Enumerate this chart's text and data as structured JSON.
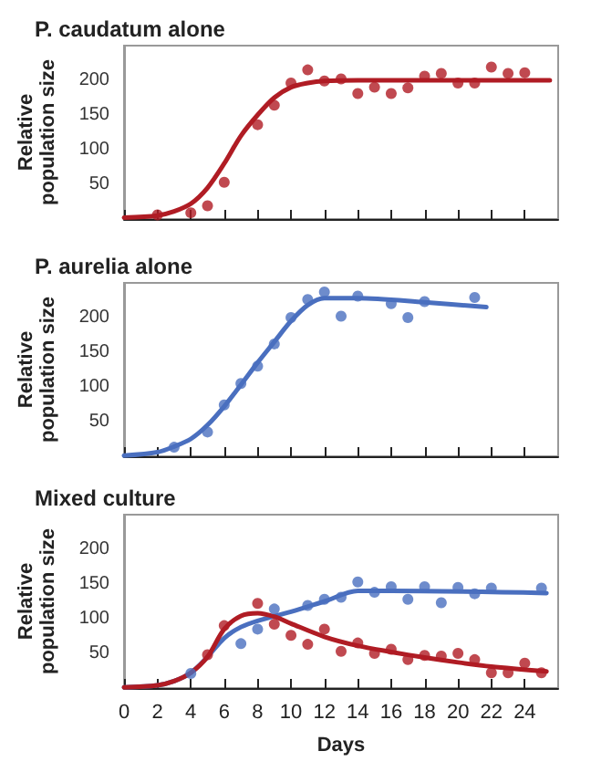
{
  "chart_data": [
    {
      "type": "scatter",
      "title": "P. caudatum alone",
      "ylabel": "Relative population size",
      "xlim": [
        0,
        26
      ],
      "xticks": [
        0,
        2,
        4,
        6,
        8,
        10,
        12,
        14,
        16,
        18,
        20,
        22,
        24
      ],
      "ylim": [
        0,
        250
      ],
      "yticks": [
        50,
        100,
        150,
        200
      ],
      "tick_labels": "y",
      "grid": false,
      "marker": "circle",
      "series": [
        {
          "color": "#b01c24",
          "x": [
            2,
            4,
            5,
            6,
            8,
            9,
            10,
            11,
            12,
            13,
            14,
            15,
            16,
            17,
            18,
            19,
            20,
            21,
            22,
            23,
            24
          ],
          "values": [
            6,
            9,
            19,
            53,
            136,
            164,
            196,
            215,
            199,
            202,
            181,
            190,
            181,
            189,
            206,
            210,
            196,
            196,
            219,
            210,
            211
          ]
        },
        {
          "type": "line",
          "marker": "none",
          "line_style": "solid",
          "color": "#b01c24",
          "x": [
            0,
            2,
            3,
            4,
            5,
            6,
            7,
            8,
            9,
            10,
            11,
            12,
            14,
            25.5
          ],
          "values": [
            2,
            5,
            11,
            22,
            45,
            80,
            120,
            150,
            175,
            190,
            196,
            199,
            200,
            200
          ]
        }
      ]
    },
    {
      "type": "scatter",
      "title": "P. aurelia alone",
      "ylabel": "Relative population size",
      "xlim": [
        0,
        26
      ],
      "xticks": [
        0,
        2,
        4,
        6,
        8,
        10,
        12,
        14,
        16,
        18,
        20,
        22,
        24
      ],
      "ylim": [
        0,
        250
      ],
      "yticks": [
        50,
        100,
        150,
        200
      ],
      "tick_labels": "y",
      "grid": false,
      "marker": "circle",
      "series": [
        {
          "color": "#4a6fbf",
          "x": [
            3,
            5,
            6,
            7,
            8,
            9,
            10,
            11,
            12,
            13,
            14,
            16,
            17,
            18,
            21
          ],
          "values": [
            13,
            35,
            74,
            105,
            130,
            162,
            200,
            226,
            237,
            202,
            231,
            220,
            200,
            223,
            229
          ]
        },
        {
          "type": "line",
          "marker": "none",
          "line_style": "solid",
          "color": "#4a6fbf",
          "x": [
            0,
            2,
            3,
            4,
            5,
            6,
            7,
            8,
            9,
            10,
            11,
            12,
            14,
            18,
            21.7
          ],
          "values": [
            1,
            6,
            14,
            25,
            45,
            72,
            103,
            135,
            165,
            195,
            218,
            228,
            228,
            222,
            215
          ]
        }
      ]
    },
    {
      "type": "scatter",
      "title": "Mixed culture",
      "xlabel": "Days",
      "ylabel": "Relative population size",
      "xlim": [
        0,
        26
      ],
      "xticks": [
        0,
        2,
        4,
        6,
        8,
        10,
        12,
        14,
        16,
        18,
        20,
        22,
        24
      ],
      "ylim": [
        0,
        250
      ],
      "yticks": [
        50,
        100,
        150,
        200
      ],
      "grid": false,
      "marker": "circle",
      "series": [
        {
          "type": "line",
          "marker": "none",
          "line_style": "solid",
          "color": "#4a6fbf",
          "x": [
            0,
            2,
            3,
            4,
            5,
            6,
            7,
            8,
            10,
            12,
            14,
            16,
            25.3
          ],
          "values": [
            1,
            4,
            10,
            22,
            45,
            72,
            88,
            97,
            110,
            125,
            140,
            140,
            137
          ]
        },
        {
          "type": "line",
          "marker": "none",
          "line_style": "solid",
          "color": "#b01c24",
          "x": [
            0,
            2,
            3,
            4,
            5,
            6,
            7,
            8,
            9,
            10,
            12,
            14,
            16,
            18,
            20,
            22,
            25.3
          ],
          "values": [
            1,
            4,
            10,
            22,
            45,
            85,
            104,
            108,
            103,
            93,
            74,
            61,
            52,
            44,
            37,
            31,
            24
          ]
        },
        {
          "color": "#4a6fbf",
          "x": [
            4,
            7,
            8,
            9,
            11,
            12,
            13,
            14,
            15,
            16,
            17,
            18,
            19,
            20,
            21,
            22,
            25
          ],
          "values": [
            21,
            64,
            85,
            114,
            119,
            128,
            131,
            153,
            138,
            146,
            128,
            146,
            123,
            145,
            136,
            144,
            144
          ]
        },
        {
          "color": "#b01c24",
          "x": [
            5,
            6,
            8,
            9,
            10,
            11,
            12,
            13,
            14,
            15,
            16,
            17,
            18,
            19,
            20,
            21,
            22,
            23,
            24,
            25
          ],
          "values": [
            48,
            90,
            122,
            92,
            76,
            63,
            85,
            53,
            65,
            50,
            56,
            41,
            47,
            46,
            50,
            41,
            22,
            22,
            36,
            22
          ]
        }
      ]
    }
  ]
}
